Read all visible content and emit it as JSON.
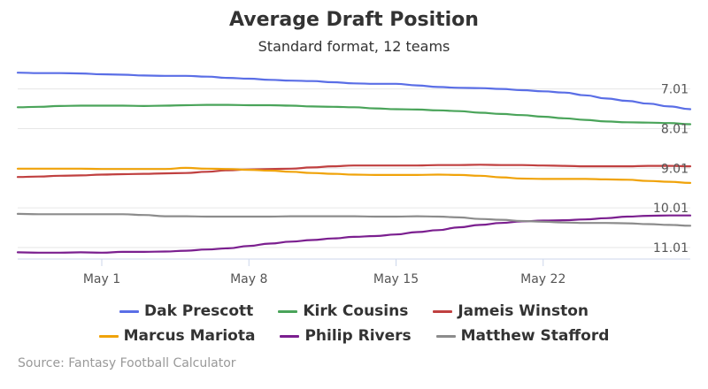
{
  "chart_data": {
    "type": "line",
    "title": "Average Draft Position",
    "subtitle": "Standard format, 12 teams",
    "x_tick_labels": [
      "May 1",
      "May 8",
      "May 15",
      "May 22"
    ],
    "x_ticks": [
      3,
      10,
      17,
      24
    ],
    "x_range": [
      -1,
      31
    ],
    "y_ticks": [
      7.01,
      8.01,
      9.01,
      10.01,
      11.01
    ],
    "y_tick_labels": [
      "7.01",
      "8.01",
      "9.01",
      "10.01",
      "11.01"
    ],
    "y_range": [
      6.55,
      11.3
    ],
    "y_reversed": true,
    "grid": true,
    "legend_position": "bottom",
    "x": [
      -1,
      0,
      1,
      2,
      3,
      4,
      5,
      6,
      7,
      8,
      9,
      10,
      11,
      12,
      13,
      14,
      15,
      16,
      17,
      18,
      19,
      20,
      21,
      22,
      23,
      24,
      25,
      26,
      27,
      28,
      29,
      30,
      31
    ],
    "series": [
      {
        "name": "Dak Prescott",
        "color": "#5a6ee6",
        "values": [
          6.6,
          6.61,
          6.61,
          6.62,
          6.64,
          6.65,
          6.67,
          6.68,
          6.68,
          6.7,
          6.73,
          6.75,
          6.78,
          6.8,
          6.81,
          6.84,
          6.87,
          6.88,
          6.88,
          6.92,
          6.96,
          6.98,
          6.99,
          7.01,
          7.04,
          7.07,
          7.1,
          7.17,
          7.25,
          7.31,
          7.38,
          7.45,
          7.52
        ]
      },
      {
        "name": "Kirk Cousins",
        "color": "#4aa45a",
        "values": [
          7.47,
          7.46,
          7.44,
          7.43,
          7.43,
          7.43,
          7.44,
          7.43,
          7.42,
          7.41,
          7.41,
          7.42,
          7.42,
          7.43,
          7.45,
          7.46,
          7.47,
          7.5,
          7.52,
          7.53,
          7.55,
          7.57,
          7.61,
          7.64,
          7.67,
          7.71,
          7.75,
          7.79,
          7.83,
          7.85,
          7.86,
          7.87,
          7.9
        ]
      },
      {
        "name": "Jameis Winston",
        "color": "#c04040",
        "values": [
          9.23,
          9.22,
          9.2,
          9.19,
          9.17,
          9.16,
          9.15,
          9.14,
          9.13,
          9.1,
          9.06,
          9.04,
          9.03,
          9.02,
          8.99,
          8.96,
          8.94,
          8.94,
          8.94,
          8.94,
          8.93,
          8.93,
          8.92,
          8.93,
          8.93,
          8.94,
          8.95,
          8.96,
          8.96,
          8.96,
          8.95,
          8.95,
          8.96
        ]
      },
      {
        "name": "Marcus Mariota",
        "color": "#f0a30a",
        "values": [
          9.02,
          9.02,
          9.02,
          9.02,
          9.03,
          9.03,
          9.03,
          9.03,
          9.0,
          9.02,
          9.03,
          9.05,
          9.07,
          9.1,
          9.13,
          9.15,
          9.17,
          9.18,
          9.18,
          9.18,
          9.17,
          9.18,
          9.2,
          9.24,
          9.27,
          9.28,
          9.28,
          9.28,
          9.29,
          9.3,
          9.33,
          9.35,
          9.38
        ]
      },
      {
        "name": "Philip Rivers",
        "color": "#7b1f8f",
        "values": [
          11.13,
          11.14,
          11.14,
          11.13,
          11.14,
          11.12,
          11.12,
          11.11,
          11.09,
          11.06,
          11.03,
          10.97,
          10.91,
          10.86,
          10.82,
          10.78,
          10.74,
          10.72,
          10.68,
          10.62,
          10.57,
          10.5,
          10.44,
          10.39,
          10.35,
          10.33,
          10.32,
          10.3,
          10.27,
          10.23,
          10.21,
          10.2,
          10.2
        ]
      },
      {
        "name": "Matthew Stafford",
        "color": "#8c8c8c",
        "values": [
          10.16,
          10.17,
          10.17,
          10.17,
          10.17,
          10.17,
          10.19,
          10.22,
          10.22,
          10.23,
          10.23,
          10.23,
          10.23,
          10.22,
          10.22,
          10.22,
          10.22,
          10.23,
          10.23,
          10.22,
          10.23,
          10.25,
          10.29,
          10.31,
          10.34,
          10.36,
          10.38,
          10.39,
          10.39,
          10.4,
          10.42,
          10.44,
          10.46
        ]
      }
    ]
  },
  "source": "Source: Fantasy Football Calculator"
}
